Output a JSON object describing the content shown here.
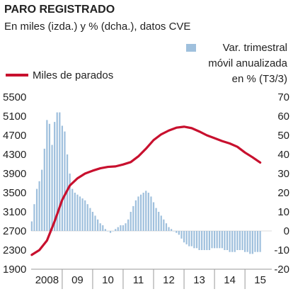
{
  "colors": {
    "line": "#c8102e",
    "bar": "#9fc0dd",
    "bar_dark": "#7ea9cf",
    "axis": "#999999",
    "text": "#222222"
  },
  "chart_data": {
    "type": "bar+line",
    "title": "PARO REGISTRADO",
    "subtitle": "En miles (izda.) y % (dcha.), datos CVE",
    "legend": {
      "line_label": "Miles de parados",
      "bar_label_lines": [
        "Var. trimestral",
        "móvil anualizada",
        "en % (T3/3)"
      ]
    },
    "left_axis": {
      "ticks": [
        "5500",
        "5100",
        "4700",
        "4300",
        "3900",
        "3500",
        "3100",
        "2700",
        "2300",
        "1900"
      ],
      "ylim": [
        1900,
        5500
      ]
    },
    "right_axis": {
      "ticks": [
        "70",
        "60",
        "50",
        "40",
        "30",
        "20",
        "10",
        "0",
        "-10",
        "-20"
      ],
      "ylim": [
        -20,
        70
      ]
    },
    "x_axis": {
      "labels": [
        "2008",
        "09",
        "10",
        "11",
        "12",
        "13",
        "14",
        "15"
      ]
    },
    "series": [
      {
        "name": "Miles de parados",
        "kind": "line",
        "axis": "left",
        "x": [
          2008.0,
          2008.25,
          2008.5,
          2008.75,
          2009.0,
          2009.25,
          2009.5,
          2009.75,
          2010.0,
          2010.25,
          2010.5,
          2010.75,
          2011.0,
          2011.25,
          2011.5,
          2011.75,
          2012.0,
          2012.25,
          2012.5,
          2012.75,
          2013.0,
          2013.25,
          2013.5,
          2013.75,
          2014.0,
          2014.25,
          2014.5,
          2014.75,
          2015.0,
          2015.25,
          2015.5
        ],
        "values": [
          2200,
          2300,
          2500,
          2900,
          3350,
          3650,
          3800,
          3900,
          3960,
          4010,
          4040,
          4050,
          4090,
          4140,
          4260,
          4420,
          4600,
          4720,
          4800,
          4860,
          4880,
          4850,
          4780,
          4700,
          4640,
          4580,
          4530,
          4460,
          4340,
          4240,
          4130
        ]
      },
      {
        "name": "Var. trimestral móvil anualizada en % (T3/3)",
        "kind": "bar",
        "axis": "right",
        "x": [
          2008.0,
          2008.083,
          2008.167,
          2008.25,
          2008.333,
          2008.417,
          2008.5,
          2008.583,
          2008.667,
          2008.75,
          2008.833,
          2008.917,
          2009.0,
          2009.083,
          2009.167,
          2009.25,
          2009.333,
          2009.417,
          2009.5,
          2009.583,
          2009.667,
          2009.75,
          2009.833,
          2009.917,
          2010.0,
          2010.083,
          2010.167,
          2010.25,
          2010.333,
          2010.417,
          2010.5,
          2010.583,
          2010.667,
          2010.75,
          2010.833,
          2010.917,
          2011.0,
          2011.083,
          2011.167,
          2011.25,
          2011.333,
          2011.417,
          2011.5,
          2011.583,
          2011.667,
          2011.75,
          2011.833,
          2011.917,
          2012.0,
          2012.083,
          2012.167,
          2012.25,
          2012.333,
          2012.417,
          2012.5,
          2012.583,
          2012.667,
          2012.75,
          2012.833,
          2012.917,
          2013.0,
          2013.083,
          2013.167,
          2013.25,
          2013.333,
          2013.417,
          2013.5,
          2013.583,
          2013.667,
          2013.75,
          2013.833,
          2013.917,
          2014.0,
          2014.083,
          2014.167,
          2014.25,
          2014.333,
          2014.417,
          2014.5,
          2014.583,
          2014.667,
          2014.75,
          2014.833,
          2014.917,
          2015.0,
          2015.083,
          2015.167,
          2015.25,
          2015.333,
          2015.417,
          2015.5
        ],
        "values": [
          5,
          14,
          22,
          26,
          32,
          43,
          58,
          56,
          45,
          57,
          62,
          62,
          55,
          52,
          40,
          30,
          22,
          20,
          19,
          18,
          17,
          16,
          14,
          12,
          10,
          8,
          6,
          4,
          3,
          1,
          0,
          -1,
          0,
          1,
          2,
          3,
          3,
          4,
          6,
          10,
          13,
          16,
          18,
          19,
          20,
          21,
          20,
          18,
          15,
          12,
          10,
          8,
          6,
          4,
          2,
          1,
          0,
          -1,
          -2,
          -4,
          -6,
          -7,
          -8,
          -8,
          -9,
          -9,
          -10,
          -10,
          -10,
          -10,
          -10,
          -9,
          -9,
          -9,
          -9,
          -9,
          -10,
          -10,
          -11,
          -11,
          -11,
          -10,
          -10,
          -10,
          -11,
          -11,
          -12,
          -12,
          -11,
          -11,
          -11
        ]
      }
    ],
    "xlim": [
      2007.98,
      2015.88
    ]
  }
}
